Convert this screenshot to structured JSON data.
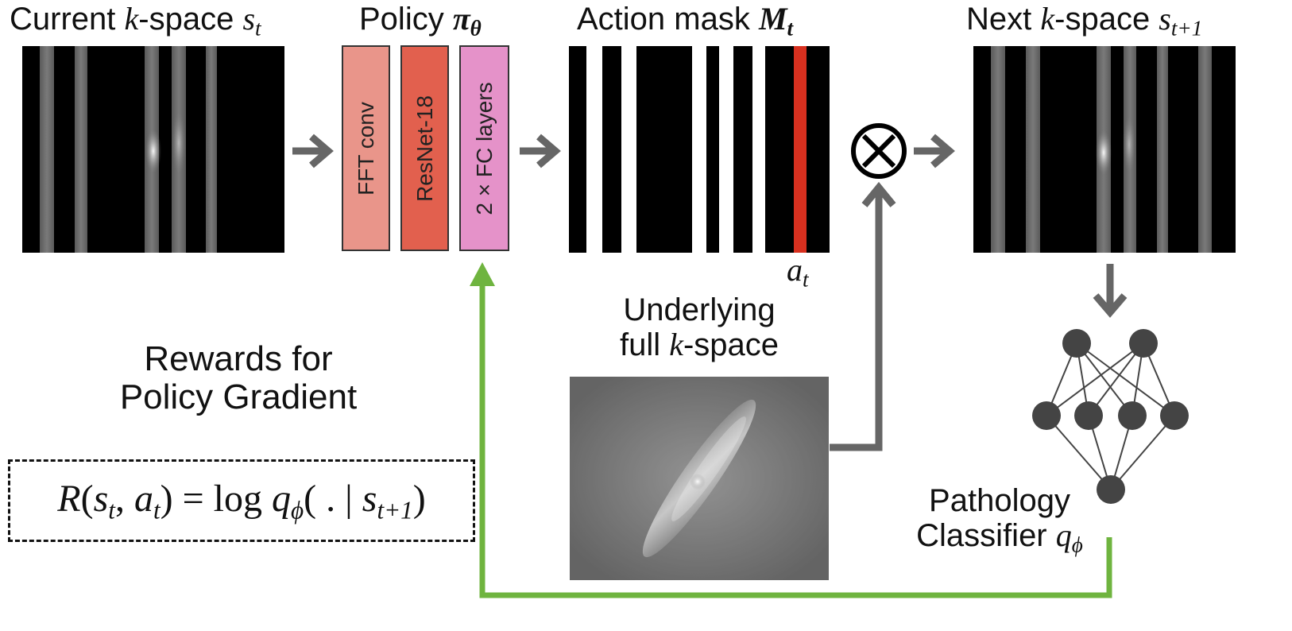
{
  "colors": {
    "fft_conv": "#e9958a",
    "resnet": "#e2604e",
    "fc_layers": "#e592c9",
    "action_red": "#d8301f",
    "feedback_green": "#6fb43f",
    "arrow_gray": "#666666",
    "node": "#444444"
  },
  "current_kspace": {
    "label_pre": "Current ",
    "label_k": "k",
    "label_post": "-space ",
    "label_sym": "s",
    "label_sub": "t"
  },
  "policy": {
    "label_pre": "Policy ",
    "label_sym": "π",
    "label_sub": "θ",
    "layers": [
      {
        "label": "FFT conv"
      },
      {
        "label": "ResNet-18"
      },
      {
        "label": "2 × FC layers"
      }
    ]
  },
  "action_mask": {
    "label_pre": "Action mask ",
    "label_sym": "M",
    "label_sub": "t",
    "action_sym": "a",
    "action_sub": "t"
  },
  "multiply_icon": "circled-times-icon",
  "next_kspace": {
    "label_pre": "Next ",
    "label_k": "k",
    "label_post": "-space ",
    "label_sym": "s",
    "label_sub": "t+1"
  },
  "underlying": {
    "line1": "Underlying",
    "line2_pre": "full ",
    "line2_k": "k",
    "line2_post": "-space"
  },
  "classifier": {
    "line1": "Pathology",
    "line2_pre": "Classifier ",
    "line2_sym": "q",
    "line2_sub": "ϕ"
  },
  "rewards": {
    "line1": "Rewards for",
    "line2": "Policy Gradient",
    "formula": {
      "R": "R",
      "open": "(",
      "s": "s",
      "s_sub": "t",
      "comma": ", ",
      "a": "a",
      "a_sub": "t",
      "close_eq": ") = log ",
      "q": "q",
      "q_sub": "ϕ",
      "mid": "( . | ",
      "s2": "s",
      "s2_sub": "t+1",
      "end": ")"
    }
  }
}
